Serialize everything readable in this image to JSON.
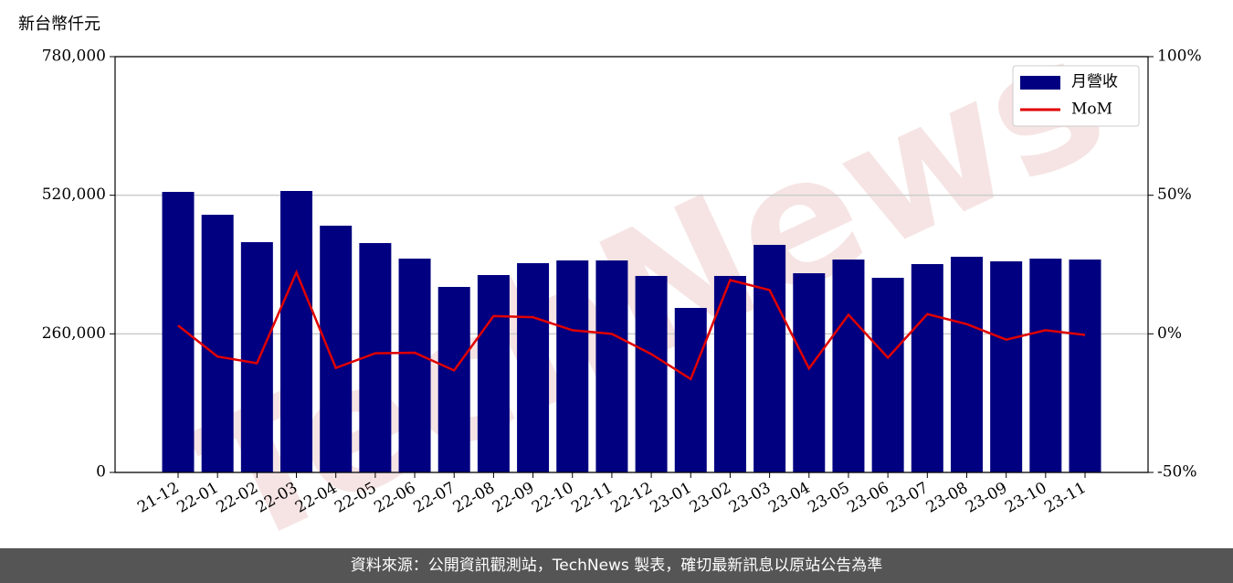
{
  "chart_data": {
    "type": "bar-line",
    "y_unit_label": "新台幣仟元",
    "watermark": "TechNews",
    "categories": [
      "21-12",
      "22-01",
      "22-02",
      "22-03",
      "22-04",
      "22-05",
      "22-06",
      "22-07",
      "22-08",
      "22-09",
      "22-10",
      "22-11",
      "22-12",
      "23-01",
      "23-02",
      "23-03",
      "23-04",
      "23-05",
      "23-06",
      "23-07",
      "23-08",
      "23-09",
      "23-10",
      "23-11"
    ],
    "series": [
      {
        "name": "月營收",
        "type": "bar",
        "color": "#000080",
        "values": [
          526300,
          483400,
          432000,
          528000,
          462900,
          430300,
          401100,
          348000,
          370300,
          392600,
          397700,
          397700,
          368600,
          308600,
          368600,
          426900,
          373700,
          399400,
          365100,
          390900,
          404600,
          396000,
          401100,
          399400
        ]
      },
      {
        "name": "MoM",
        "type": "line",
        "color": "#e00000",
        "axis": "y2",
        "values": [
          3.0,
          -8.2,
          -10.6,
          22.2,
          -12.3,
          -7.0,
          -6.8,
          -13.2,
          6.4,
          6.0,
          1.3,
          0.0,
          -7.3,
          -16.3,
          19.4,
          15.8,
          -12.5,
          6.9,
          -8.6,
          7.1,
          3.5,
          -2.1,
          1.3,
          -0.4
        ]
      }
    ],
    "ylim": [
      0,
      780000
    ],
    "yticks": [
      0,
      {
        "value": 260000,
        "label": "260,000"
      },
      {
        "value": 520000,
        "label": "520,000"
      },
      {
        "value": 780000,
        "label": "780,000"
      }
    ],
    "y2lim": [
      -50,
      100
    ],
    "y2ticks": [
      {
        "value": -50,
        "label": "-50%"
      },
      {
        "value": 0,
        "label": "0%"
      },
      {
        "value": 50,
        "label": "50%"
      },
      {
        "value": 100,
        "label": "100%"
      }
    ],
    "grid": true,
    "legend": "upper right"
  },
  "footer": "資料來源：公開資訊觀測站，TechNews 製表，確切最新訊息以原站公告為準"
}
